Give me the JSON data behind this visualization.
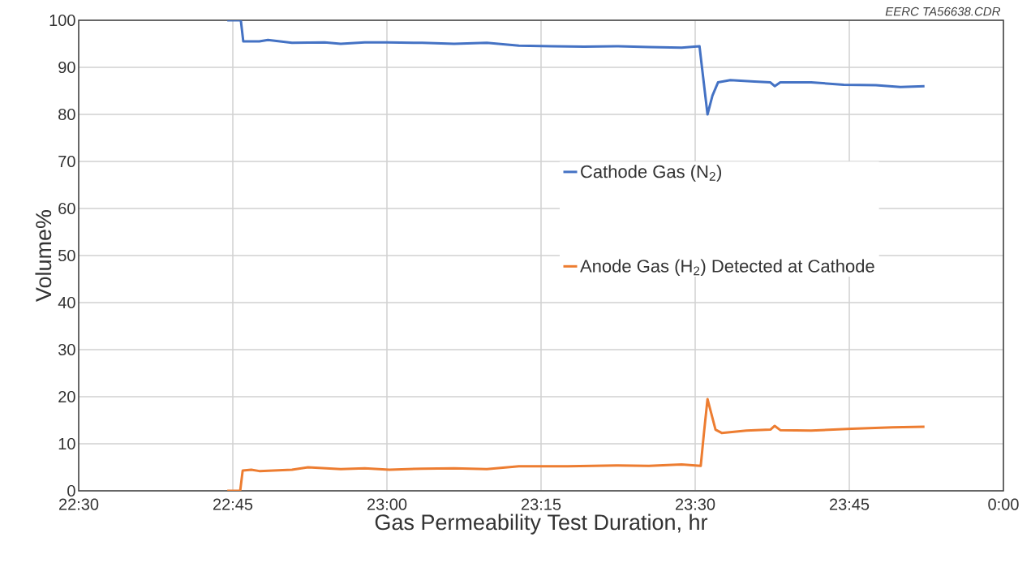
{
  "chart_data": {
    "type": "line",
    "xlabel": "Gas Permeability Test Duration, hr",
    "ylabel": "Volume%",
    "annotations": [
      "EERC TA56638.CDR"
    ],
    "xlim": [
      22.5,
      24
    ],
    "ylim": [
      0,
      100
    ],
    "xticks": [
      {
        "value": 22.5,
        "label": "22:30"
      },
      {
        "value": 22.75,
        "label": "22:45"
      },
      {
        "value": 23.0,
        "label": "23:00"
      },
      {
        "value": 23.25,
        "label": "23:15"
      },
      {
        "value": 23.5,
        "label": "23:30"
      },
      {
        "value": 23.75,
        "label": "23:45"
      },
      {
        "value": 24.0,
        "label": "0:00"
      }
    ],
    "yticks": [
      0,
      10,
      20,
      30,
      40,
      50,
      60,
      70,
      80,
      90,
      100
    ],
    "grid": true,
    "legend": "right",
    "line_style": "solid",
    "marker": "none",
    "series": [
      {
        "name": "Cathode Gas (N$_{2}$)",
        "color": "#4472c4",
        "x": [
          22.741,
          22.763,
          22.767,
          22.793,
          22.807,
          22.846,
          22.899,
          22.925,
          22.964,
          23.0,
          23.057,
          23.109,
          23.162,
          23.214,
          23.267,
          23.32,
          23.372,
          23.425,
          23.478,
          23.507,
          23.511,
          23.52,
          23.528,
          23.537,
          23.557,
          23.596,
          23.622,
          23.629,
          23.638,
          23.688,
          23.741,
          23.793,
          23.833,
          23.872
        ],
        "values": [
          100,
          100,
          95.5,
          95.5,
          95.8,
          95.2,
          95.3,
          95.0,
          95.3,
          95.3,
          95.2,
          95.0,
          95.2,
          94.6,
          94.5,
          94.4,
          94.5,
          94.3,
          94.2,
          94.5,
          90,
          80,
          84,
          86.8,
          87.3,
          87,
          86.8,
          86,
          86.8,
          86.8,
          86.3,
          86.2,
          85.8,
          86
        ]
      },
      {
        "name": "Anode Gas (H$_{2}$) Detected at Cathode",
        "color": "#ed7d31",
        "x": [
          22.741,
          22.762,
          22.766,
          22.78,
          22.793,
          22.846,
          22.872,
          22.925,
          22.964,
          23.004,
          23.057,
          23.109,
          23.162,
          23.214,
          23.293,
          23.372,
          23.425,
          23.478,
          23.509,
          23.514,
          23.52,
          23.525,
          23.533,
          23.543,
          23.583,
          23.622,
          23.629,
          23.638,
          23.688,
          23.754,
          23.82,
          23.872
        ],
        "values": [
          0,
          0,
          4.3,
          4.5,
          4.2,
          4.5,
          5,
          4.6,
          4.8,
          4.5,
          4.7,
          4.8,
          4.6,
          5.2,
          5.2,
          5.4,
          5.3,
          5.6,
          5.3,
          12,
          19.5,
          17,
          13,
          12.3,
          12.8,
          13,
          13.8,
          12.9,
          12.8,
          13.2,
          13.5,
          13.6
        ]
      }
    ]
  }
}
